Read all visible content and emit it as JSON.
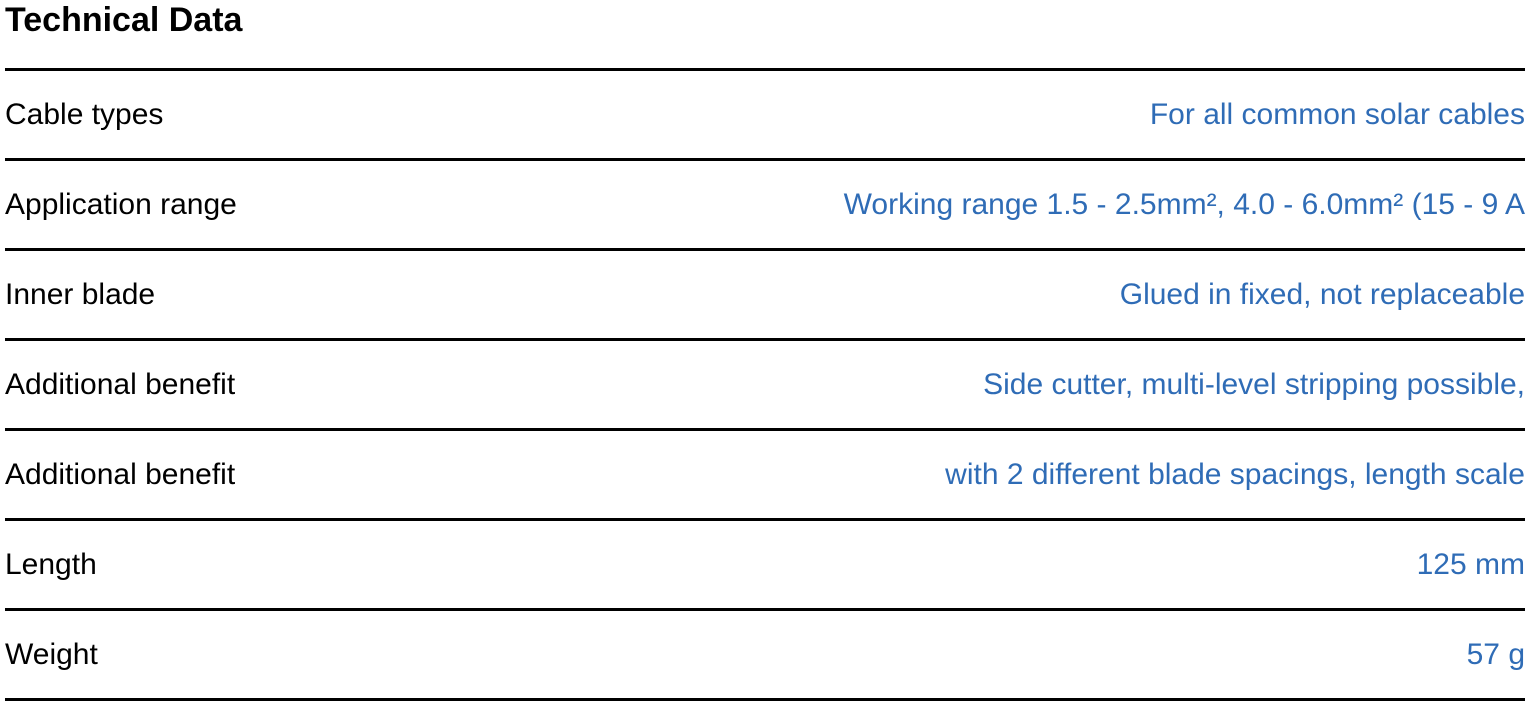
{
  "title": "Technical Data",
  "rows": [
    {
      "label": "Cable types",
      "value": "For all common solar cables"
    },
    {
      "label": "Application range",
      "value": "Working range 1.5 - 2.5mm², 4.0 - 6.0mm² (15 - 9 A"
    },
    {
      "label": "Inner blade",
      "value": "Glued in fixed, not replaceable"
    },
    {
      "label": "Additional benefit",
      "value": "Side cutter, multi-level stripping possible,"
    },
    {
      "label": "Additional benefit",
      "value": "with 2 different blade spacings, length scale"
    },
    {
      "label": "Length",
      "value": "125 mm"
    },
    {
      "label": "Weight",
      "value": "57 g"
    }
  ],
  "colors": {
    "value_text": "#2f6cb6",
    "rule": "#000000"
  }
}
